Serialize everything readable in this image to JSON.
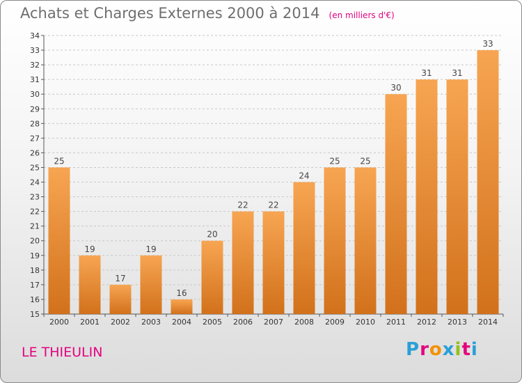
{
  "header": {
    "title": "Achats et Charges Externes 2000 à 2014",
    "unit": "(en milliers d'€)"
  },
  "footer": {
    "location": "LE THIEULIN",
    "brand": "Proxiti",
    "brand_letter_colors": [
      "#2a9fd6",
      "#e5007e",
      "#f39200",
      "#2a9fd6",
      "#93c01f",
      "#e5007e",
      "#2a9fd6"
    ]
  },
  "colors": {
    "bar_light": "#f7a552",
    "bar_dark": "#d2711b",
    "title": "#6e6e6e",
    "accent": "#e4007f"
  },
  "chart_data": {
    "type": "bar",
    "categories": [
      "2000",
      "2001",
      "2002",
      "2003",
      "2004",
      "2005",
      "2006",
      "2007",
      "2008",
      "2009",
      "2010",
      "2011",
      "2012",
      "2013",
      "2014"
    ],
    "values": [
      25,
      19,
      17,
      19,
      16,
      20,
      22,
      22,
      24,
      25,
      25,
      30,
      31,
      31,
      33
    ],
    "ylim": [
      15,
      34
    ],
    "yticks": [
      15,
      16,
      17,
      18,
      19,
      20,
      21,
      22,
      23,
      24,
      25,
      26,
      27,
      28,
      29,
      30,
      31,
      32,
      33,
      34
    ],
    "grid": "horizontal dashed",
    "data_labels": true
  }
}
